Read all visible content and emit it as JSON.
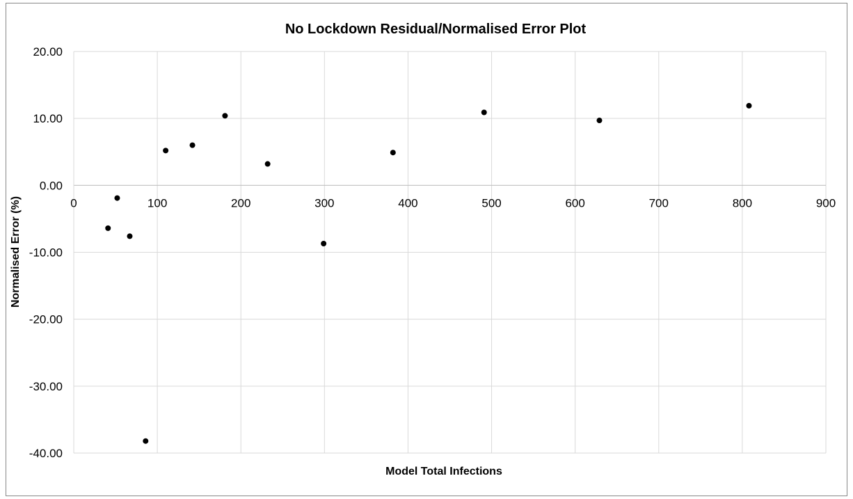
{
  "chart_data": {
    "type": "scatter",
    "title": "No Lockdown Residual/Normalised Error Plot",
    "xlabel": "Model Total Infections",
    "ylabel": "Normalised Error (%)",
    "xlim": [
      0,
      900
    ],
    "ylim": [
      -40,
      20
    ],
    "xticks": [
      0,
      100,
      200,
      300,
      400,
      500,
      600,
      700,
      800,
      900
    ],
    "yticks": [
      20,
      10,
      0,
      -10,
      -20,
      -30,
      -40
    ],
    "xtick_labels": [
      "0",
      "100",
      "200",
      "300",
      "400",
      "500",
      "600",
      "700",
      "800",
      "900"
    ],
    "ytick_labels": [
      "20.00",
      "10.00",
      "0.00",
      "-10.00",
      "-20.00",
      "-30.00",
      "-40.00"
    ],
    "grid": true,
    "legend": "none",
    "marker_color": "#000000",
    "points": [
      {
        "x": 41,
        "y": -6.4
      },
      {
        "x": 52,
        "y": -1.9
      },
      {
        "x": 67,
        "y": -7.6
      },
      {
        "x": 86,
        "y": -38.2
      },
      {
        "x": 110,
        "y": 5.2
      },
      {
        "x": 142,
        "y": 6.0
      },
      {
        "x": 181,
        "y": 10.4
      },
      {
        "x": 232,
        "y": 3.2
      },
      {
        "x": 299,
        "y": -8.7
      },
      {
        "x": 382,
        "y": 4.9
      },
      {
        "x": 491,
        "y": 10.9
      },
      {
        "x": 629,
        "y": 9.7
      },
      {
        "x": 808,
        "y": 11.9
      }
    ]
  }
}
